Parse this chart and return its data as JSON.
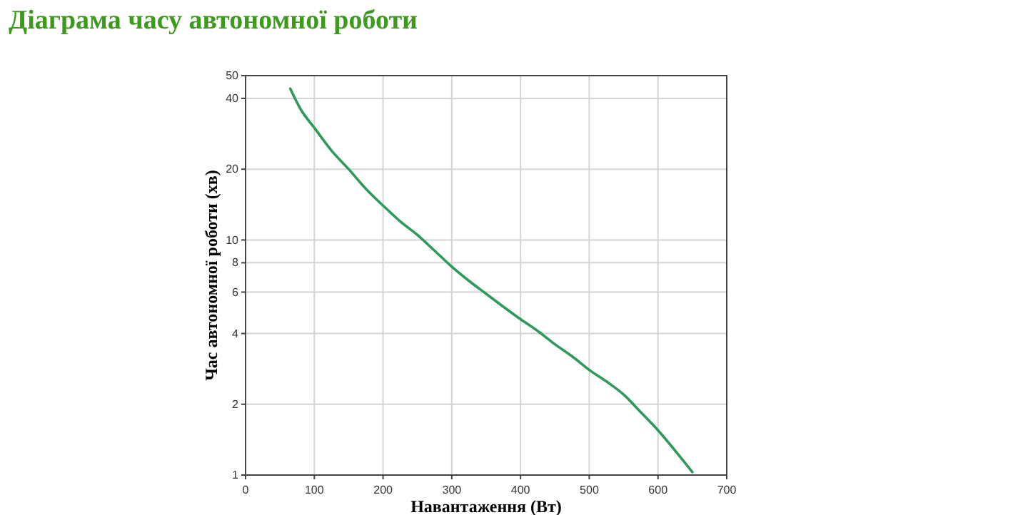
{
  "chart_data": {
    "type": "line",
    "title": "Діаграма часу автономної роботи",
    "xlabel": "Навантаження (Вт)",
    "ylabel": "Час автономної роботи (хв)",
    "x": [
      65,
      80,
      100,
      125,
      150,
      175,
      200,
      225,
      250,
      275,
      300,
      325,
      350,
      375,
      400,
      425,
      450,
      475,
      500,
      525,
      550,
      575,
      600,
      625,
      650
    ],
    "series": [
      {
        "color": "#2e9a5a",
        "values": [
          44,
          36,
          30,
          24,
          20,
          16.5,
          14,
          12,
          10.5,
          9,
          7.7,
          6.7,
          5.9,
          5.2,
          4.6,
          4.1,
          3.6,
          3.2,
          2.8,
          2.5,
          2.2,
          1.85,
          1.55,
          1.27,
          1.03
        ]
      }
    ],
    "xlim": [
      0,
      700
    ],
    "xticks": [
      0,
      100,
      200,
      300,
      400,
      500,
      600,
      700
    ],
    "ylim": [
      1,
      50
    ],
    "yticks": [
      1,
      2,
      4,
      6,
      8,
      10,
      20,
      40,
      50
    ],
    "log": "y",
    "grid": true
  }
}
